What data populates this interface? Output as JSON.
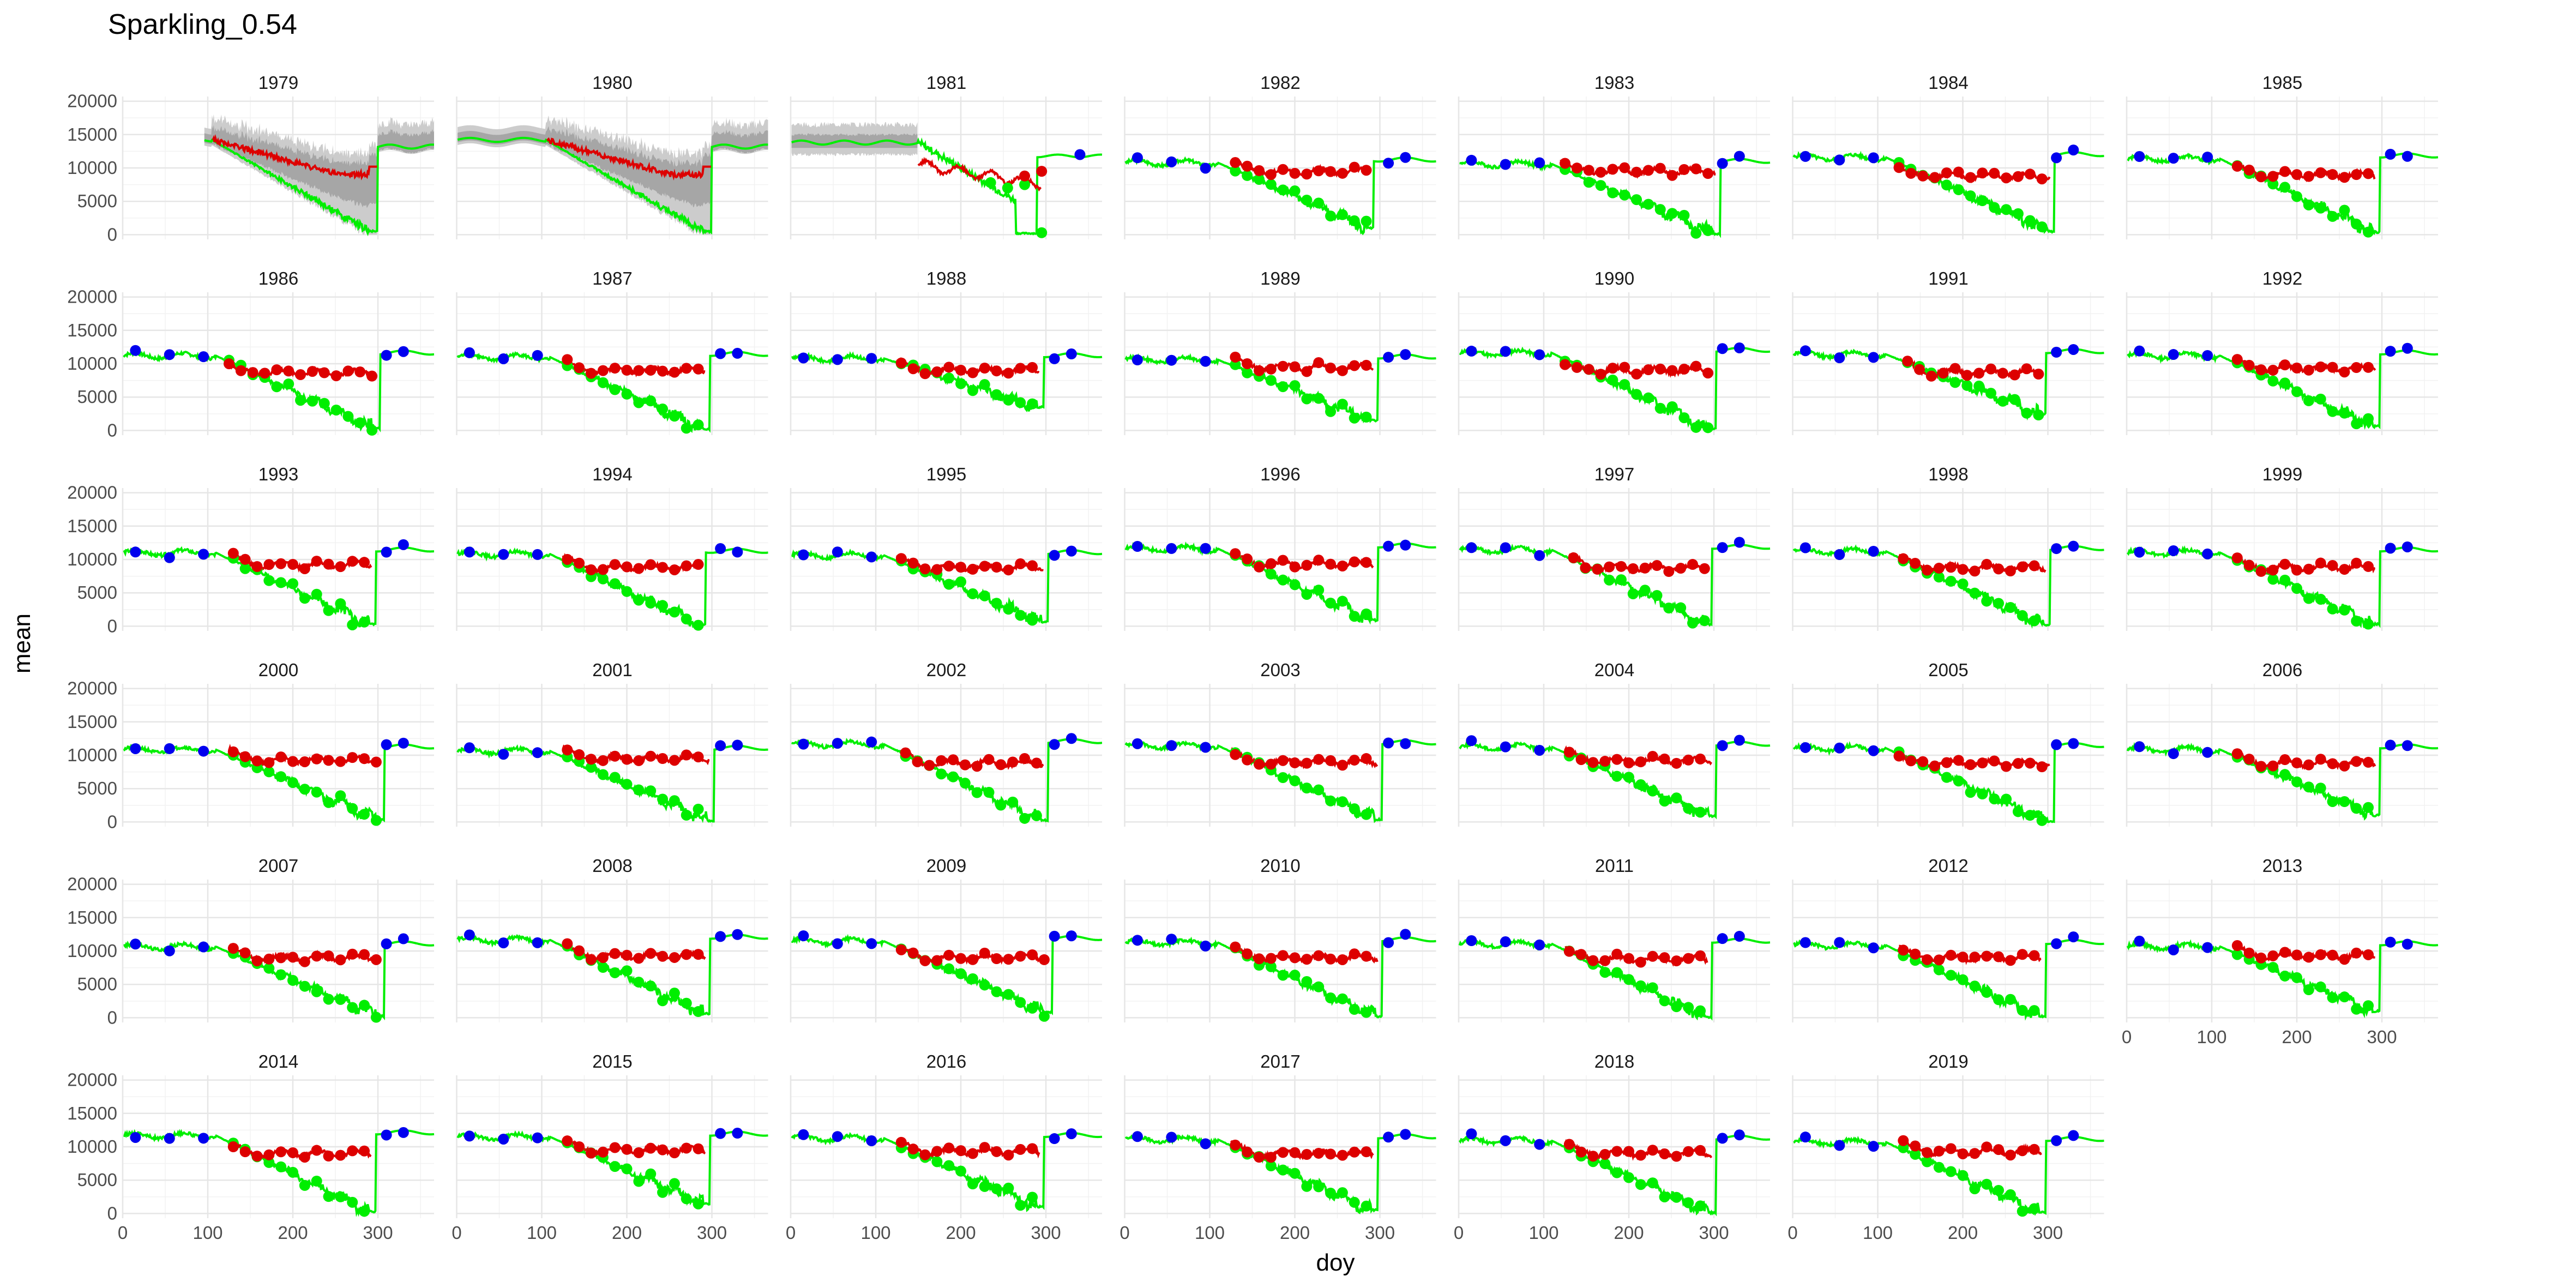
{
  "chart_data": {
    "type": "line",
    "title": "Sparkling_0.54",
    "xlabel": "doy",
    "ylabel": "mean",
    "xlim": [
      0,
      366
    ],
    "ylim": [
      -700,
      20700
    ],
    "x_ticks": [
      0,
      100,
      200,
      300
    ],
    "y_ticks": [
      0,
      5000,
      10000,
      15000,
      20000
    ],
    "grid": true,
    "legend": "none",
    "colors": {
      "green": "#00ee00",
      "red": "#dd0000",
      "blue": "#0000ee",
      "band_outer": "#cccccc",
      "band_inner": "#999999"
    },
    "facets": [
      {
        "label": "1979",
        "kind": "early",
        "start": 95
      },
      {
        "label": "1980",
        "kind": "early",
        "start": 0
      },
      {
        "label": "1981",
        "kind": "y1981"
      },
      {
        "label": "1982",
        "kind": "normal",
        "seed": 3,
        "green_min": 1000,
        "red_level": 9500,
        "drop_day": 285,
        "red_start": 125
      },
      {
        "label": "1983",
        "kind": "normal",
        "seed": 4,
        "green_min": 100,
        "red_level": 9500,
        "drop_day": 300,
        "red_start": 120
      },
      {
        "label": "1984",
        "kind": "normal",
        "seed": 5,
        "green_min": 500,
        "red_level": 8800,
        "drop_day": 300,
        "red_start": 120
      },
      {
        "label": "1985",
        "kind": "normal",
        "seed": 6,
        "green_min": 400,
        "red_level": 9000,
        "drop_day": 290,
        "red_start": 125
      },
      {
        "label": "1986",
        "kind": "normal",
        "seed": 7,
        "green_min": 300,
        "red_level": 8700,
        "drop_day": 295,
        "red_start": 120
      },
      {
        "label": "1987",
        "kind": "normal",
        "seed": 8,
        "green_min": 200,
        "red_level": 9000,
        "drop_day": 290,
        "red_start": 125
      },
      {
        "label": "1988",
        "kind": "normal",
        "seed": 9,
        "green_min": 3500,
        "red_level": 9000,
        "drop_day": 290,
        "red_start": 125
      },
      {
        "label": "1989",
        "kind": "normal",
        "seed": 10,
        "green_min": 1500,
        "red_level": 9500,
        "drop_day": 290,
        "red_start": 125
      },
      {
        "label": "1990",
        "kind": "normal",
        "seed": 11,
        "green_min": 200,
        "red_level": 9000,
        "drop_day": 295,
        "red_start": 120
      },
      {
        "label": "1991",
        "kind": "normal",
        "seed": 12,
        "green_min": 2500,
        "red_level": 8700,
        "drop_day": 290,
        "red_start": 130
      },
      {
        "label": "1992",
        "kind": "normal",
        "seed": 13,
        "green_min": 600,
        "red_level": 9300,
        "drop_day": 290,
        "red_start": 125
      },
      {
        "label": "1993",
        "kind": "normal",
        "seed": 14,
        "green_min": 300,
        "red_level": 9200,
        "drop_day": 290,
        "red_start": 125
      },
      {
        "label": "1994",
        "kind": "normal",
        "seed": 15,
        "green_min": 300,
        "red_level": 8800,
        "drop_day": 285,
        "red_start": 125
      },
      {
        "label": "1995",
        "kind": "normal",
        "seed": 16,
        "green_min": 700,
        "red_level": 8800,
        "drop_day": 295,
        "red_start": 125
      },
      {
        "label": "1996",
        "kind": "normal",
        "seed": 17,
        "green_min": 900,
        "red_level": 9300,
        "drop_day": 290,
        "red_start": 125
      },
      {
        "label": "1997",
        "kind": "normal",
        "seed": 18,
        "green_min": 300,
        "red_level": 8800,
        "drop_day": 290,
        "red_start": 130
      },
      {
        "label": "1998",
        "kind": "normal",
        "seed": 19,
        "green_min": 200,
        "red_level": 8800,
        "drop_day": 295,
        "red_start": 125
      },
      {
        "label": "1999",
        "kind": "normal",
        "seed": 20,
        "green_min": 300,
        "red_level": 8800,
        "drop_day": 290,
        "red_start": 125
      },
      {
        "label": "2000",
        "kind": "normal",
        "seed": 21,
        "green_min": 300,
        "red_level": 9300,
        "drop_day": 300,
        "red_start": 125
      },
      {
        "label": "2001",
        "kind": "normal",
        "seed": 22,
        "green_min": 200,
        "red_level": 9500,
        "drop_day": 295,
        "red_start": 125
      },
      {
        "label": "2002",
        "kind": "normal",
        "seed": 23,
        "green_min": 300,
        "red_level": 8800,
        "drop_day": 295,
        "red_start": 130
      },
      {
        "label": "2003",
        "kind": "normal",
        "seed": 24,
        "green_min": 400,
        "red_level": 9000,
        "drop_day": 295,
        "red_start": 125
      },
      {
        "label": "2004",
        "kind": "normal",
        "seed": 25,
        "green_min": 900,
        "red_level": 9200,
        "drop_day": 295,
        "red_start": 125
      },
      {
        "label": "2005",
        "kind": "normal",
        "seed": 26,
        "green_min": 100,
        "red_level": 8800,
        "drop_day": 300,
        "red_start": 120
      },
      {
        "label": "2006",
        "kind": "normal",
        "seed": 27,
        "green_min": 1000,
        "red_level": 8800,
        "drop_day": 290,
        "red_start": 125
      },
      {
        "label": "2007",
        "kind": "normal",
        "seed": 28,
        "green_min": 200,
        "red_level": 9000,
        "drop_day": 300,
        "red_start": 125
      },
      {
        "label": "2008",
        "kind": "normal",
        "seed": 29,
        "green_min": 600,
        "red_level": 9300,
        "drop_day": 290,
        "red_start": 125
      },
      {
        "label": "2009",
        "kind": "normal",
        "seed": 30,
        "green_min": 800,
        "red_level": 9000,
        "drop_day": 300,
        "red_start": 125
      },
      {
        "label": "2010",
        "kind": "normal",
        "seed": 31,
        "green_min": 200,
        "red_level": 9000,
        "drop_day": 295,
        "red_start": 125
      },
      {
        "label": "2011",
        "kind": "normal",
        "seed": 32,
        "green_min": 100,
        "red_level": 8800,
        "drop_day": 290,
        "red_start": 125
      },
      {
        "label": "2012",
        "kind": "normal",
        "seed": 33,
        "green_min": 200,
        "red_level": 9000,
        "drop_day": 290,
        "red_start": 125
      },
      {
        "label": "2013",
        "kind": "normal",
        "seed": 34,
        "green_min": 1000,
        "red_level": 9300,
        "drop_day": 290,
        "red_start": 125
      },
      {
        "label": "2014",
        "kind": "normal",
        "seed": 35,
        "green_min": 300,
        "red_level": 9000,
        "drop_day": 290,
        "red_start": 125
      },
      {
        "label": "2015",
        "kind": "normal",
        "seed": 36,
        "green_min": 1500,
        "red_level": 9500,
        "drop_day": 290,
        "red_start": 125
      },
      {
        "label": "2016",
        "kind": "normal",
        "seed": 37,
        "green_min": 1000,
        "red_level": 9300,
        "drop_day": 290,
        "red_start": 125
      },
      {
        "label": "2017",
        "kind": "normal",
        "seed": 38,
        "green_min": 500,
        "red_level": 9000,
        "drop_day": 290,
        "red_start": 125
      },
      {
        "label": "2018",
        "kind": "normal",
        "seed": 39,
        "green_min": 100,
        "red_level": 9000,
        "drop_day": 295,
        "red_start": 125
      },
      {
        "label": "2019",
        "kind": "normal",
        "seed": 40,
        "green_min": 200,
        "red_level": 9300,
        "drop_day": 290,
        "red_start": 125
      }
    ]
  }
}
